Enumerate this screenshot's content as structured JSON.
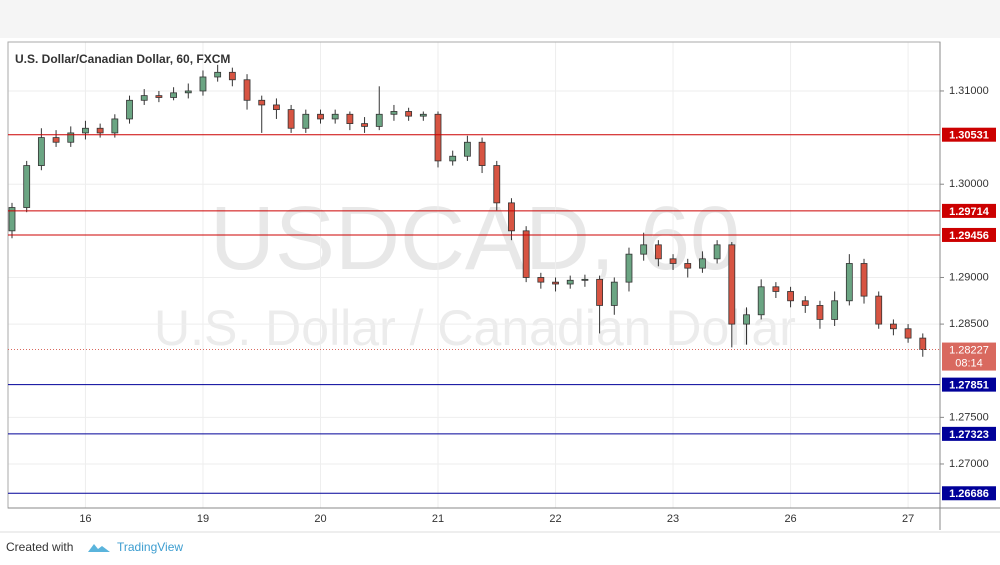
{
  "chart_data": {
    "type": "candlestick",
    "title": "U.S. Dollar/Canadian Dollar, 60, FXCM",
    "watermark_symbol": "USDCAD, 60",
    "watermark_name": "U.S. Dollar / Canadian Dollar",
    "categories": [
      null,
      null,
      null,
      null,
      null,
      "16",
      null,
      null,
      null,
      null,
      null,
      null,
      null,
      "19",
      null,
      null,
      null,
      null,
      null,
      null,
      null,
      "20",
      null,
      null,
      null,
      null,
      null,
      null,
      null,
      "21",
      null,
      null,
      null,
      null,
      null,
      null,
      null,
      "22",
      null,
      null,
      null,
      null,
      null,
      null,
      null,
      "23",
      null,
      null,
      null,
      null,
      null,
      null,
      null,
      "26",
      null,
      null,
      null,
      null,
      null,
      null,
      null,
      "27",
      null
    ],
    "open": [
      1.295,
      1.2975,
      1.302,
      1.305,
      1.3045,
      1.3055,
      1.306,
      1.3055,
      1.307,
      1.309,
      1.3095,
      1.3093,
      1.3098,
      1.31,
      1.3115,
      1.312,
      1.3112,
      1.309,
      1.3085,
      1.308,
      1.306,
      1.3075,
      1.307,
      1.3075,
      1.3065,
      1.3062,
      1.3075,
      1.3078,
      1.3073,
      1.3075,
      1.3025,
      1.303,
      1.3045,
      1.302,
      1.298,
      1.295,
      1.29,
      1.2895,
      1.2893,
      1.2897,
      1.2898,
      1.287,
      1.2895,
      1.2925,
      1.2935,
      1.292,
      1.2915,
      1.291,
      1.292,
      1.2935,
      1.285,
      1.286,
      1.289,
      1.2885,
      1.2875,
      1.287,
      1.2855,
      1.2875,
      1.2915,
      1.288,
      1.285,
      1.2845,
      1.2835
    ],
    "high": [
      1.298,
      1.3025,
      1.306,
      1.3058,
      1.3062,
      1.3068,
      1.3065,
      1.3075,
      1.3095,
      1.3102,
      1.31,
      1.3104,
      1.3108,
      1.3122,
      1.3128,
      1.3125,
      1.3118,
      1.3095,
      1.3092,
      1.3085,
      1.308,
      1.308,
      1.308,
      1.3078,
      1.3072,
      1.3105,
      1.3085,
      1.3082,
      1.3078,
      1.3078,
      1.3036,
      1.3052,
      1.305,
      1.3025,
      1.2985,
      1.2955,
      1.2905,
      1.29,
      1.2902,
      1.2903,
      1.2902,
      1.29,
      1.2932,
      1.2948,
      1.294,
      1.2925,
      1.292,
      1.2928,
      1.294,
      1.2938,
      1.2868,
      1.2898,
      1.2895,
      1.289,
      1.288,
      1.2875,
      1.2885,
      1.2925,
      1.292,
      1.2885,
      1.2855,
      1.285,
      1.284
    ],
    "low": [
      1.2942,
      1.297,
      1.3015,
      1.304,
      1.304,
      1.3048,
      1.305,
      1.305,
      1.3065,
      1.3085,
      1.3088,
      1.309,
      1.3092,
      1.3095,
      1.311,
      1.3105,
      1.308,
      1.3055,
      1.307,
      1.3055,
      1.3055,
      1.3065,
      1.3065,
      1.3058,
      1.3055,
      1.3058,
      1.3068,
      1.3068,
      1.3068,
      1.3018,
      1.302,
      1.3025,
      1.3012,
      1.2972,
      1.294,
      1.2895,
      1.2888,
      1.2885,
      1.2888,
      1.289,
      1.284,
      1.286,
      1.2885,
      1.2918,
      1.2912,
      1.2908,
      1.29,
      1.2905,
      1.2915,
      1.2825,
      1.2828,
      1.2855,
      1.2878,
      1.2868,
      1.2862,
      1.2845,
      1.2848,
      1.287,
      1.2872,
      1.2845,
      1.2838,
      1.283,
      1.2815
    ],
    "close": [
      1.2975,
      1.302,
      1.305,
      1.3045,
      1.3055,
      1.306,
      1.3055,
      1.307,
      1.309,
      1.3095,
      1.3093,
      1.3098,
      1.31,
      1.3115,
      1.312,
      1.3112,
      1.309,
      1.3085,
      1.308,
      1.306,
      1.3075,
      1.307,
      1.3075,
      1.3065,
      1.3062,
      1.3075,
      1.3078,
      1.3073,
      1.3075,
      1.3025,
      1.303,
      1.3045,
      1.302,
      1.298,
      1.295,
      1.29,
      1.2895,
      1.2893,
      1.2897,
      1.2898,
      1.287,
      1.2895,
      1.2925,
      1.2935,
      1.292,
      1.2915,
      1.291,
      1.292,
      1.2935,
      1.285,
      1.286,
      1.289,
      1.2885,
      1.2875,
      1.287,
      1.2855,
      1.2875,
      1.2915,
      1.288,
      1.285,
      1.2845,
      1.2835,
      1.28227
    ],
    "up_color": "#6ba583",
    "down_color": "#d75442",
    "ylim": [
      1.26528,
      1.31525
    ],
    "yticks": [
      {
        "value": 1.31,
        "label": "1.31000"
      },
      {
        "value": 1.3,
        "label": "1.30000"
      },
      {
        "value": 1.29,
        "label": "1.29000"
      },
      {
        "value": 1.285,
        "label": "1.28500"
      },
      {
        "value": 1.275,
        "label": "1.27500"
      },
      {
        "value": 1.27,
        "label": "1.27000"
      }
    ],
    "grid": true,
    "levels": [
      {
        "value": 1.30531,
        "color": "#cc0000"
      },
      {
        "value": 1.29714,
        "color": "#cc0000"
      },
      {
        "value": 1.29456,
        "color": "#cc0000"
      },
      {
        "value": 1.27851,
        "color": "#000099"
      },
      {
        "value": 1.27323,
        "color": "#000099"
      },
      {
        "value": 1.26686,
        "color": "#000099"
      }
    ],
    "current_price": 1.28227,
    "current_color": "#d9695f",
    "countdown": "08:14"
  },
  "footer": {
    "created_with": "Created with",
    "brand": "TradingView"
  }
}
